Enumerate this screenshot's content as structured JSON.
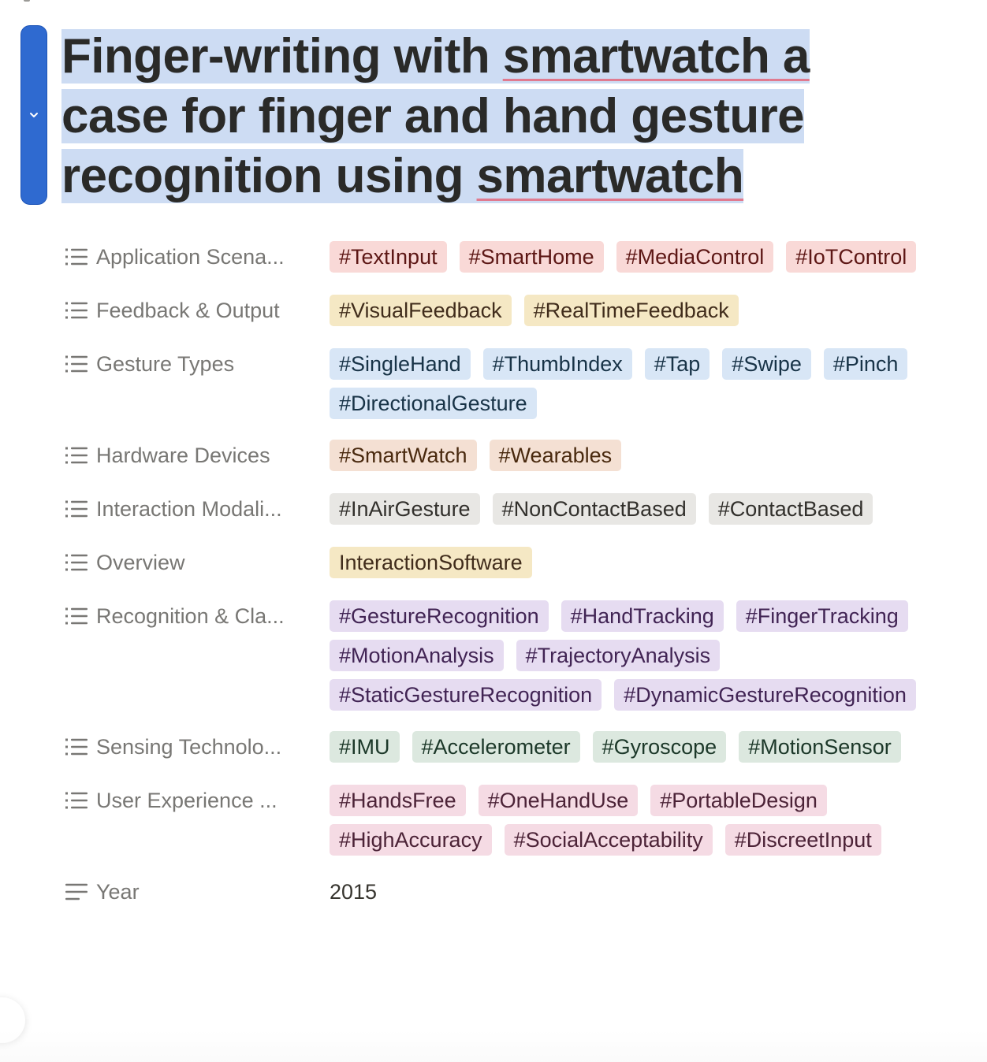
{
  "page": {
    "title_lines": [
      [
        {
          "text": "Finger-writing with ",
          "spell": false
        },
        {
          "text": "smartwatch",
          "spell": true
        },
        {
          "text": " a",
          "spell": true
        }
      ],
      [
        {
          "text": "case for finger and hand gesture",
          "spell": false
        }
      ],
      [
        {
          "text": "recognition using ",
          "spell": false
        },
        {
          "text": "smartwatch",
          "spell": true
        }
      ]
    ]
  },
  "properties": [
    {
      "label": "Application Scena...",
      "type": "multi_select",
      "tags": [
        {
          "text": "#TextInput",
          "color": "red"
        },
        {
          "text": "#SmartHome",
          "color": "red"
        },
        {
          "text": "#MediaControl",
          "color": "red"
        },
        {
          "text": "#IoTControl",
          "color": "red"
        }
      ]
    },
    {
      "label": "Feedback & Output",
      "type": "multi_select",
      "tags": [
        {
          "text": "#VisualFeedback",
          "color": "yellow"
        },
        {
          "text": "#RealTimeFeedback",
          "color": "yellow"
        }
      ]
    },
    {
      "label": "Gesture Types",
      "type": "multi_select",
      "tags": [
        {
          "text": "#SingleHand",
          "color": "blue"
        },
        {
          "text": "#ThumbIndex",
          "color": "blue"
        },
        {
          "text": "#Tap",
          "color": "blue"
        },
        {
          "text": "#Swipe",
          "color": "blue"
        },
        {
          "text": "#Pinch",
          "color": "blue"
        },
        {
          "text": "#DirectionalGesture",
          "color": "blue"
        }
      ]
    },
    {
      "label": "Hardware Devices",
      "type": "multi_select",
      "tags": [
        {
          "text": "#SmartWatch",
          "color": "orange"
        },
        {
          "text": "#Wearables",
          "color": "orange"
        }
      ]
    },
    {
      "label": "Interaction Modali...",
      "type": "multi_select",
      "tags": [
        {
          "text": "#InAirGesture",
          "color": "gray"
        },
        {
          "text": "#NonContactBased",
          "color": "gray"
        },
        {
          "text": "#ContactBased",
          "color": "gray"
        }
      ]
    },
    {
      "label": "Overview",
      "type": "multi_select",
      "tags": [
        {
          "text": "InteractionSoftware",
          "color": "yellow"
        }
      ]
    },
    {
      "label": "Recognition & Cla...",
      "type": "multi_select",
      "tags": [
        {
          "text": "#GestureRecognition",
          "color": "purple"
        },
        {
          "text": "#HandTracking",
          "color": "purple"
        },
        {
          "text": "#FingerTracking",
          "color": "purple"
        },
        {
          "text": "#MotionAnalysis",
          "color": "purple"
        },
        {
          "text": "#TrajectoryAnalysis",
          "color": "purple"
        },
        {
          "text": "#StaticGestureRecognition",
          "color": "purple"
        },
        {
          "text": "#DynamicGestureRecognition",
          "color": "purple"
        }
      ]
    },
    {
      "label": "Sensing Technolo...",
      "type": "multi_select",
      "tags": [
        {
          "text": "#IMU",
          "color": "green"
        },
        {
          "text": "#Accelerometer",
          "color": "green"
        },
        {
          "text": "#Gyroscope",
          "color": "green"
        },
        {
          "text": "#MotionSensor",
          "color": "green"
        }
      ]
    },
    {
      "label": "User Experience ...",
      "type": "multi_select",
      "tags": [
        {
          "text": "#HandsFree",
          "color": "pink"
        },
        {
          "text": "#OneHandUse",
          "color": "pink"
        },
        {
          "text": "#PortableDesign",
          "color": "pink"
        },
        {
          "text": "#HighAccuracy",
          "color": "pink"
        },
        {
          "text": "#SocialAcceptability",
          "color": "pink"
        },
        {
          "text": "#DiscreetInput",
          "color": "pink"
        }
      ]
    },
    {
      "label": "Year",
      "type": "text",
      "value": "2015"
    }
  ],
  "tag_colors": {
    "red": {
      "bg": "#f9d9d7",
      "fg": "#5d1715"
    },
    "yellow": {
      "bg": "#f5e8c4",
      "fg": "#402c1b"
    },
    "blue": {
      "bg": "#d8e6f6",
      "fg": "#183347"
    },
    "orange": {
      "bg": "#f4e0d3",
      "fg": "#49290e"
    },
    "gray": {
      "bg": "#e8e7e4",
      "fg": "#32302c"
    },
    "purple": {
      "bg": "#e6dcf1",
      "fg": "#412454"
    },
    "green": {
      "bg": "#dce8df",
      "fg": "#1c3829"
    },
    "pink": {
      "bg": "#f5dbe4",
      "fg": "#4c2337"
    }
  },
  "colors": {
    "title_highlight": "#cddcf3",
    "drag_handle": "#2f6ad0",
    "spellcheck_underline": "#e07a8f",
    "label_text": "#787774"
  },
  "icons": {
    "drag_handle": "chevron-down-icon",
    "multi_select": "list-icon",
    "text": "text-lines-icon"
  }
}
